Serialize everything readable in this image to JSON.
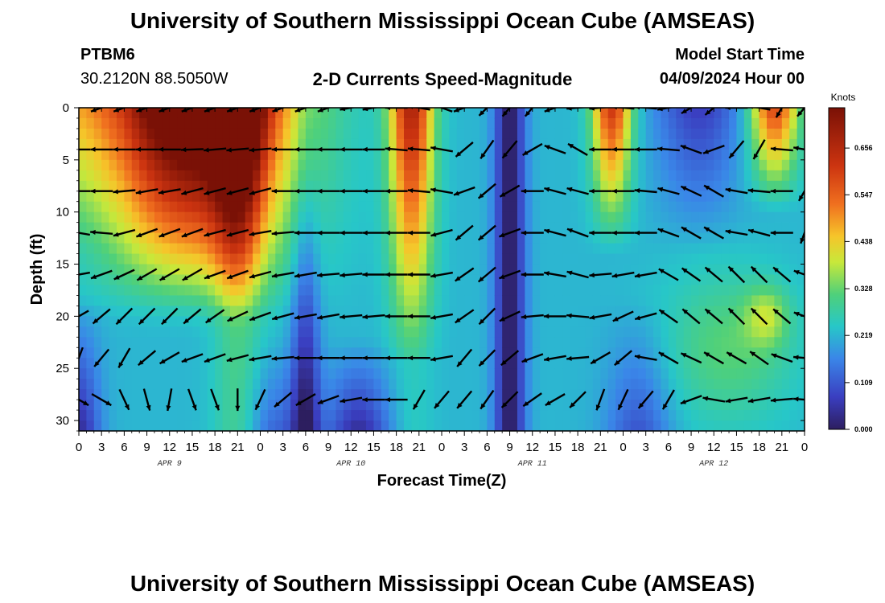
{
  "header": {
    "title_top": "University of Southern Mississippi Ocean Cube (AMSEAS)",
    "title_bottom": "University of Southern Mississippi Ocean Cube (AMSEAS)",
    "station_id": "PTBM6",
    "station_coords": "30.2120N  88.5050W",
    "plot_title": "2-D Currents Speed-Magnitude",
    "model_start_label": "Model Start Time",
    "model_start_value": "04/09/2024 Hour 00"
  },
  "chart_data": {
    "type": "heatmap",
    "title": "2-D Currents Speed-Magnitude",
    "xlabel": "Forecast Time(Z)",
    "ylabel": "Depth (ft)",
    "colorbar_unit": "Knots",
    "colorbar_ticks": [
      "0.000",
      "0.109",
      "0.219",
      "0.328",
      "0.438",
      "0.547",
      "0.656"
    ],
    "colorbar_range": [
      0,
      0.75
    ],
    "x_range_hours": [
      0,
      96
    ],
    "x_tick_hours": [
      0,
      3,
      6,
      9,
      12,
      15,
      18,
      21,
      24,
      27,
      30,
      33,
      36,
      39,
      42,
      45,
      48,
      51,
      54,
      57,
      60,
      63,
      66,
      69,
      72,
      75,
      78,
      81,
      84,
      87,
      90,
      93,
      96
    ],
    "x_tick_labels": [
      "0",
      "3",
      "6",
      "9",
      "12",
      "15",
      "18",
      "21",
      "0",
      "3",
      "6",
      "9",
      "12",
      "15",
      "18",
      "21",
      "0",
      "3",
      "6",
      "9",
      "12",
      "15",
      "18",
      "21",
      "0",
      "3",
      "6",
      "9",
      "12",
      "15",
      "18",
      "21",
      "0"
    ],
    "day_labels": [
      {
        "label": "APR 9",
        "hour": 12
      },
      {
        "label": "APR 10",
        "hour": 36
      },
      {
        "label": "APR 11",
        "hour": 60
      },
      {
        "label": "APR 12",
        "hour": 84
      }
    ],
    "y_range": [
      0,
      31
    ],
    "y_ticks": [
      "0",
      "5",
      "10",
      "15",
      "20",
      "25",
      "30"
    ],
    "y_tick_values": [
      0,
      5,
      10,
      15,
      20,
      25,
      30
    ],
    "vector_depths": [
      0,
      4,
      8,
      12,
      16,
      20,
      24,
      28
    ],
    "vector_hours_step": 3,
    "vector_angles_deg": [
      [
        200,
        200,
        200,
        200,
        200,
        200,
        200,
        200,
        200,
        200,
        200,
        200,
        190,
        190,
        180,
        170,
        160,
        200,
        225,
        230,
        230,
        200,
        185,
        185,
        175,
        175,
        190,
        210,
        220,
        180,
        170,
        240,
        230
      ],
      [
        180,
        180,
        180,
        180,
        180,
        182,
        185,
        185,
        185,
        180,
        180,
        180,
        180,
        180,
        175,
        175,
        170,
        220,
        235,
        230,
        210,
        160,
        150,
        180,
        180,
        180,
        175,
        160,
        200,
        230,
        240,
        175,
        170
      ],
      [
        180,
        180,
        185,
        190,
        190,
        195,
        195,
        195,
        195,
        180,
        180,
        180,
        180,
        180,
        180,
        175,
        170,
        200,
        220,
        210,
        180,
        165,
        165,
        180,
        180,
        175,
        165,
        155,
        150,
        170,
        175,
        180,
        240
      ],
      [
        170,
        175,
        195,
        200,
        200,
        200,
        195,
        195,
        190,
        185,
        180,
        180,
        180,
        180,
        180,
        180,
        195,
        220,
        220,
        200,
        180,
        165,
        160,
        180,
        180,
        180,
        160,
        150,
        150,
        170,
        165,
        180,
        250
      ],
      [
        190,
        200,
        205,
        210,
        210,
        210,
        200,
        200,
        195,
        190,
        190,
        185,
        185,
        180,
        180,
        180,
        190,
        215,
        220,
        200,
        180,
        170,
        165,
        185,
        190,
        190,
        150,
        145,
        140,
        135,
        135,
        140,
        160
      ],
      [
        210,
        220,
        225,
        225,
        225,
        220,
        215,
        205,
        200,
        195,
        190,
        190,
        185,
        185,
        180,
        180,
        190,
        215,
        225,
        205,
        185,
        180,
        175,
        190,
        205,
        195,
        145,
        140,
        140,
        135,
        135,
        140,
        160
      ],
      [
        250,
        230,
        240,
        220,
        210,
        200,
        200,
        195,
        190,
        185,
        180,
        180,
        180,
        180,
        180,
        180,
        190,
        230,
        225,
        220,
        200,
        190,
        185,
        210,
        220,
        170,
        150,
        155,
        150,
        150,
        145,
        160,
        175
      ],
      [
        330,
        330,
        295,
        285,
        260,
        290,
        290,
        270,
        245,
        220,
        210,
        200,
        190,
        180,
        180,
        240,
        230,
        230,
        235,
        225,
        215,
        210,
        225,
        250,
        245,
        230,
        240,
        200,
        170,
        190,
        190,
        185,
        175
      ]
    ],
    "speed_profile_description": "High speed near surface early, strong bands at hours 20-24 and 42-45, weak columns near hours 30 and 57"
  }
}
